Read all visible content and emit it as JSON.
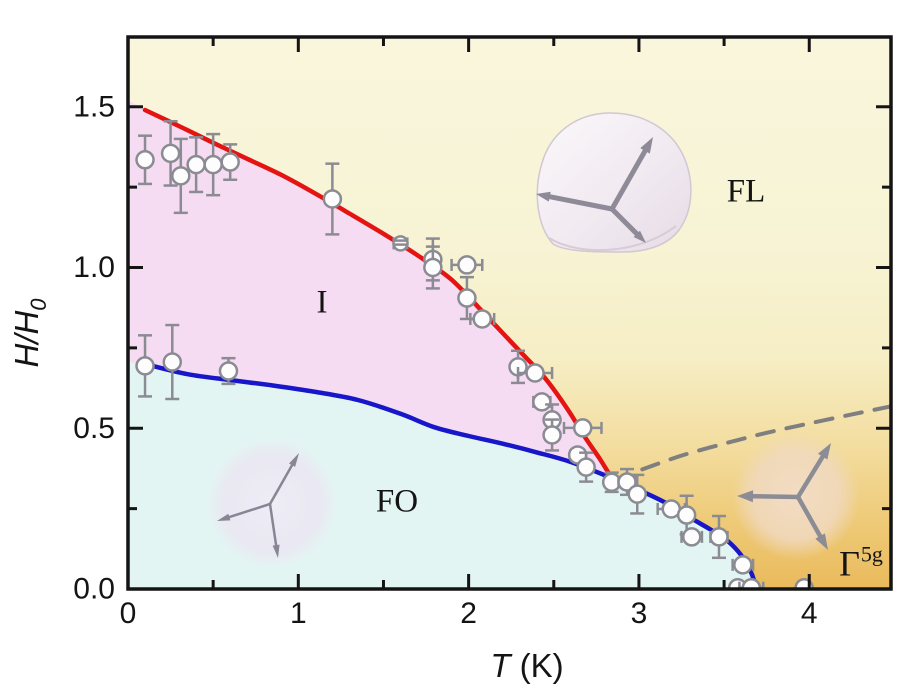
{
  "axes": {
    "y_symbol": "H/H",
    "y_sub": "0",
    "x_symbol": "T",
    "x_unit": " (K)"
  },
  "regions": {
    "intermediate": "I",
    "field_lifted": "FL",
    "ferro_octupolar": "FO",
    "gamma_base": "Γ",
    "gamma_sup": "5g"
  },
  "chart_data": {
    "type": "line",
    "title": "",
    "xlabel": "T (K)",
    "ylabel": "H/H0",
    "xlim": [
      0,
      4.48
    ],
    "ylim": [
      0,
      1.717
    ],
    "grid": false,
    "x_ticks_major": [
      0,
      1,
      2,
      3,
      4
    ],
    "x_tick_labels": [
      "0",
      "1",
      "2",
      "3",
      "4"
    ],
    "x_ticks_minor": [
      0.5,
      1.5,
      2.5,
      3.5
    ],
    "y_ticks_major": [
      0,
      0.5,
      1.0,
      1.5
    ],
    "y_tick_labels": [
      "0.0",
      "0.5",
      "1.0",
      "1.5"
    ],
    "y_ticks_minor": [
      0.25,
      0.75,
      1.25
    ],
    "colors": {
      "red_boundary": "#e41413",
      "blue_boundary": "#1717c9",
      "dashed_crossover": "#7f7f7f",
      "marker_stroke": "#8b8b93",
      "marker_fill": "#fdfdfd",
      "frame": "#141414",
      "region_I_fill": "#f6dcf2",
      "region_FO_fill": "#e3f5f3",
      "bg_gradient": [
        [
          "0%",
          "#f9f6dd"
        ],
        [
          "38%",
          "#f7f3d4"
        ],
        [
          "58%",
          "#f6eec5"
        ],
        [
          "74%",
          "#f3dda0"
        ],
        [
          "88%",
          "#eeca77"
        ],
        [
          "100%",
          "#eaba5c"
        ]
      ]
    },
    "series": [
      {
        "name": "I-FL boundary",
        "style": "solid",
        "color": "#e41413",
        "points": [
          [
            0.1,
            1.49
          ],
          [
            0.3,
            1.44
          ],
          [
            0.5,
            1.388
          ],
          [
            0.7,
            1.338
          ],
          [
            0.9,
            1.288
          ],
          [
            1.1,
            1.23
          ],
          [
            1.3,
            1.168
          ],
          [
            1.5,
            1.105
          ],
          [
            1.7,
            1.038
          ],
          [
            1.9,
            0.962
          ],
          [
            2.1,
            0.852
          ],
          [
            2.3,
            0.74
          ],
          [
            2.45,
            0.655
          ],
          [
            2.58,
            0.56
          ],
          [
            2.68,
            0.475
          ],
          [
            2.77,
            0.405
          ],
          [
            2.84,
            0.345
          ]
        ]
      },
      {
        "name": "FO-I boundary",
        "style": "solid",
        "color": "#1717c9",
        "points": [
          [
            0.1,
            0.7
          ],
          [
            0.35,
            0.668
          ],
          [
            0.6,
            0.65
          ],
          [
            0.85,
            0.633
          ],
          [
            1.1,
            0.613
          ],
          [
            1.35,
            0.588
          ],
          [
            1.6,
            0.545
          ],
          [
            1.8,
            0.503
          ],
          [
            2.0,
            0.476
          ],
          [
            2.2,
            0.452
          ],
          [
            2.4,
            0.425
          ],
          [
            2.6,
            0.395
          ],
          [
            2.84,
            0.345
          ],
          [
            3.0,
            0.308
          ],
          [
            3.15,
            0.27
          ],
          [
            3.3,
            0.222
          ],
          [
            3.42,
            0.185
          ],
          [
            3.52,
            0.15
          ],
          [
            3.6,
            0.105
          ],
          [
            3.66,
            0.05
          ],
          [
            3.69,
            0.0
          ]
        ]
      },
      {
        "name": "crossover",
        "style": "dashed",
        "color": "#7f7f7f",
        "points": [
          [
            3.02,
            0.372
          ],
          [
            3.25,
            0.415
          ],
          [
            3.5,
            0.452
          ],
          [
            3.75,
            0.486
          ],
          [
            4.0,
            0.515
          ],
          [
            4.25,
            0.543
          ],
          [
            4.48,
            0.568
          ]
        ]
      }
    ],
    "data_points": [
      [
        0.1,
        1.335,
        0.075,
        0,
        ""
      ],
      [
        0.25,
        1.355,
        0.1,
        0,
        ""
      ],
      [
        0.31,
        1.285,
        0.115,
        0,
        ""
      ],
      [
        0.4,
        1.32,
        0.085,
        0,
        ""
      ],
      [
        0.5,
        1.32,
        0.095,
        0,
        ""
      ],
      [
        0.6,
        1.328,
        0.055,
        0,
        ""
      ],
      [
        1.2,
        1.213,
        0.11,
        0,
        ""
      ],
      [
        1.6,
        1.075,
        0,
        0.04,
        "hatched"
      ],
      [
        1.79,
        1.025,
        0.065,
        0,
        ""
      ],
      [
        1.79,
        1.0,
        0.065,
        0,
        ""
      ],
      [
        1.99,
        1.008,
        0,
        0.09,
        ""
      ],
      [
        1.99,
        0.905,
        0.065,
        0,
        ""
      ],
      [
        2.08,
        0.84,
        0,
        0.07,
        ""
      ],
      [
        2.29,
        0.691,
        0.05,
        0,
        ""
      ],
      [
        2.39,
        0.672,
        0,
        0.1,
        ""
      ],
      [
        2.43,
        0.582,
        0,
        0.05,
        ""
      ],
      [
        2.49,
        0.526,
        0.048,
        0,
        ""
      ],
      [
        2.49,
        0.479,
        0.048,
        0,
        ""
      ],
      [
        2.67,
        0.501,
        0,
        0.11,
        ""
      ],
      [
        2.64,
        0.417,
        0,
        0.04,
        ""
      ],
      [
        2.69,
        0.379,
        0.045,
        0,
        ""
      ],
      [
        2.84,
        0.332,
        0.03,
        0,
        ""
      ],
      [
        2.93,
        0.333,
        0.04,
        0.05,
        ""
      ],
      [
        2.99,
        0.295,
        0.06,
        0,
        ""
      ],
      [
        3.19,
        0.249,
        0,
        0.08,
        ""
      ],
      [
        3.28,
        0.23,
        0.06,
        0,
        ""
      ],
      [
        3.31,
        0.162,
        0,
        0.06,
        ""
      ],
      [
        3.47,
        0.162,
        0.065,
        0.05,
        ""
      ],
      [
        3.61,
        0.075,
        0,
        0.06,
        ""
      ],
      [
        3.58,
        0.004,
        0,
        0,
        ""
      ],
      [
        3.66,
        0.004,
        0,
        0.07,
        ""
      ],
      [
        3.97,
        0.004,
        0,
        0,
        ""
      ],
      [
        0.1,
        0.694,
        0.095,
        0,
        ""
      ],
      [
        0.26,
        0.706,
        0.115,
        0,
        ""
      ],
      [
        0.59,
        0.678,
        0.04,
        0,
        ""
      ]
    ],
    "legend": null,
    "annotations": [
      "I",
      "FL",
      "FO",
      "Γ5g"
    ]
  }
}
